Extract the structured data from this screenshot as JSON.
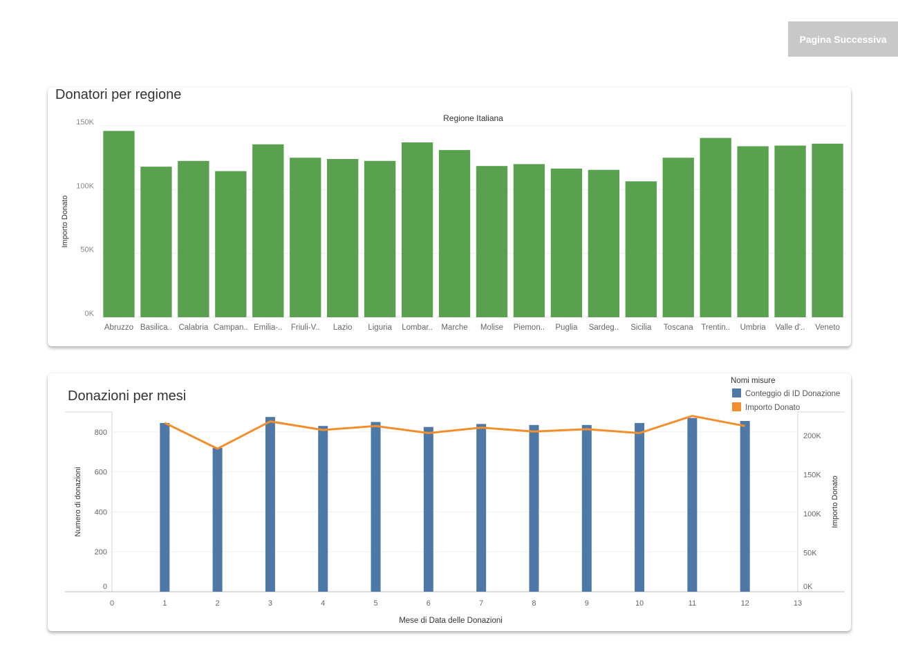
{
  "next_button": {
    "label": "Pagina Successiva"
  },
  "chart1": {
    "card_title": "Donatori per regione"
  },
  "chart2": {
    "card_title": "Donazioni per mesi"
  },
  "chart_data": [
    {
      "type": "bar",
      "title": "Regione Italiana",
      "xlabel": "",
      "ylabel": "Importo Donato",
      "categories": [
        "Abruzzo",
        "Basilica..",
        "Calabria",
        "Campan..",
        "Emilia-..",
        "Friuli-V..",
        "Lazio",
        "Liguria",
        "Lombar..",
        "Marche",
        "Molise",
        "Piemon..",
        "Puglia",
        "Sardeg..",
        "Sicilia",
        "Toscana",
        "Trentin..",
        "Umbria",
        "Valle d'..",
        "Veneto"
      ],
      "values": [
        146000,
        118000,
        122500,
        114500,
        135500,
        125000,
        124000,
        122500,
        137000,
        131000,
        118500,
        120000,
        116500,
        115500,
        106500,
        125000,
        140500,
        134000,
        134500,
        136000
      ],
      "ylim": [
        0,
        150000
      ],
      "yticks": [
        0,
        50000,
        100000,
        150000
      ],
      "ytick_labels": [
        "0K",
        "50K",
        "100K",
        "150K"
      ],
      "grid": true,
      "color": "#59a14f"
    },
    {
      "type": "bar+line",
      "title": "",
      "xlabel": "Mese di Data delle Donazioni",
      "ylabel": "Numero di donazioni",
      "y2label": "Importo Donato",
      "legend_title": "Nomi misure",
      "legend_position": "top-right",
      "x": [
        1,
        2,
        3,
        4,
        5,
        6,
        7,
        8,
        9,
        10,
        11,
        12
      ],
      "xlim": [
        0,
        13
      ],
      "xticks": [
        0,
        1,
        2,
        3,
        4,
        5,
        6,
        7,
        8,
        9,
        10,
        11,
        12,
        13
      ],
      "ylim": [
        0,
        900
      ],
      "yticks": [
        0,
        200,
        400,
        600,
        800
      ],
      "y2lim": [
        0,
        230000
      ],
      "y2ticks": [
        0,
        50000,
        100000,
        150000,
        200000
      ],
      "y2tick_labels": [
        "0K",
        "50K",
        "100K",
        "150K",
        "200K"
      ],
      "series": [
        {
          "name": "Conteggio di ID Donazione",
          "type": "bar",
          "axis": "left",
          "color": "#4e79a7",
          "values": [
            845,
            720,
            875,
            830,
            850,
            825,
            840,
            835,
            835,
            845,
            870,
            855
          ]
        },
        {
          "name": "Importo Donato",
          "type": "line",
          "axis": "right",
          "color": "#f28e2b",
          "values": [
            216000,
            183000,
            218000,
            207000,
            212000,
            203000,
            210000,
            205000,
            208000,
            203000,
            225000,
            212000
          ]
        }
      ]
    }
  ]
}
